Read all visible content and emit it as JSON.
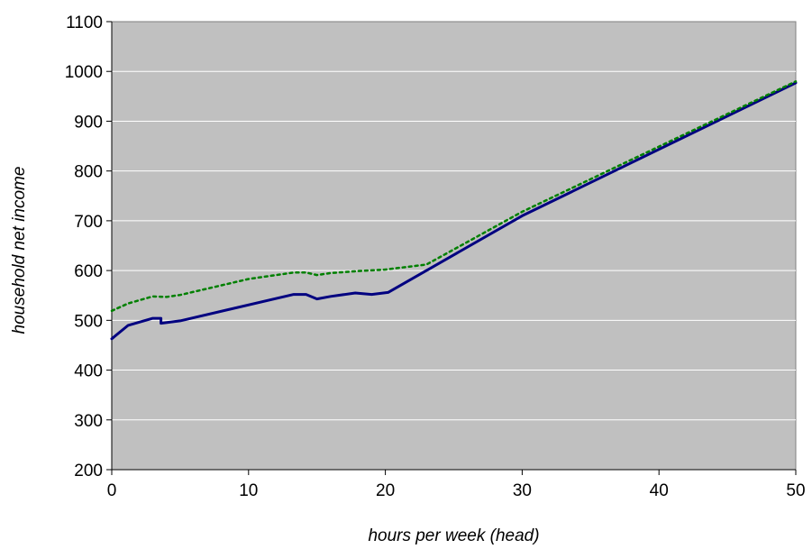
{
  "chart_data": {
    "type": "line",
    "title": "",
    "xlabel": "hours per week (head)",
    "ylabel": "household net income",
    "xlim": [
      0,
      50
    ],
    "ylim": [
      200,
      1100
    ],
    "xticks": [
      0,
      10,
      20,
      30,
      40,
      50
    ],
    "yticks": [
      200,
      300,
      400,
      500,
      600,
      700,
      800,
      900,
      1000,
      1100
    ],
    "grid": "horizontal",
    "legend": "none",
    "plot_background": "#c0c0c0",
    "series": [
      {
        "color": "#000080",
        "style": "solid",
        "x": [
          0,
          1.2,
          3,
          3.6,
          3.6,
          5,
          13.3,
          14.2,
          15,
          16,
          17.8,
          19,
          20.2,
          30,
          50
        ],
        "y": [
          463,
          490,
          504,
          504,
          494,
          499,
          552,
          552,
          543,
          548,
          555,
          552,
          556,
          710,
          977
        ]
      },
      {
        "color": "#008000",
        "style": "dotted",
        "x": [
          0,
          1.2,
          3,
          4,
          5,
          10,
          13.3,
          14.2,
          15,
          16,
          18,
          20,
          23,
          30,
          50
        ],
        "y": [
          519,
          534,
          548,
          547,
          551,
          583,
          596,
          596,
          591,
          595,
          599,
          602,
          612,
          718,
          980
        ]
      }
    ]
  }
}
